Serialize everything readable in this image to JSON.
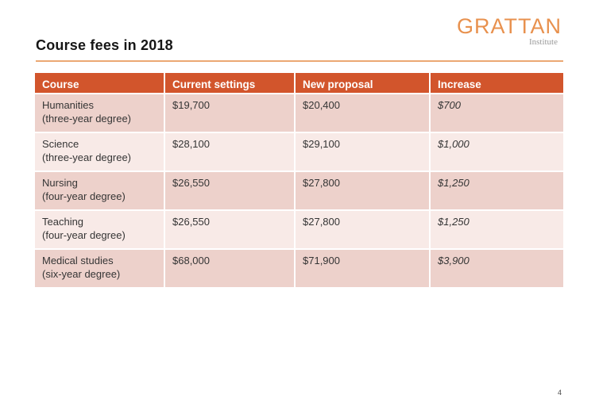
{
  "slide": {
    "title": "Course fees in 2018",
    "page_number": "4"
  },
  "logo": {
    "brand": "GRATTAN",
    "subtitle": "Institute"
  },
  "table": {
    "columns": [
      "Course",
      "Current settings",
      "New proposal",
      "Increase"
    ],
    "rows": [
      {
        "course": "Humanities",
        "degree": "(three-year degree)",
        "current": "$19,700",
        "proposal": "$20,400",
        "increase": "$700"
      },
      {
        "course": "Science",
        "degree": "(three-year degree)",
        "current": "$28,100",
        "proposal": "$29,100",
        "increase": "$1,000"
      },
      {
        "course": "Nursing",
        "degree": "(four-year degree)",
        "current": "$26,550",
        "proposal": "$27,800",
        "increase": "$1,250"
      },
      {
        "course": "Teaching",
        "degree": "(four-year degree)",
        "current": "$26,550",
        "proposal": "$27,800",
        "increase": "$1,250"
      },
      {
        "course": "Medical studies",
        "degree": "(six-year degree)",
        "current": "$68,000",
        "proposal": "$71,900",
        "increase": "$3,900"
      }
    ]
  },
  "colors": {
    "header_bg": "#D2552C",
    "row_dark": "#EDD1CB",
    "row_light": "#F8EAE7",
    "title_rule": "#EBA873",
    "logo_orange": "#E8914E",
    "body_text": "#353535"
  }
}
